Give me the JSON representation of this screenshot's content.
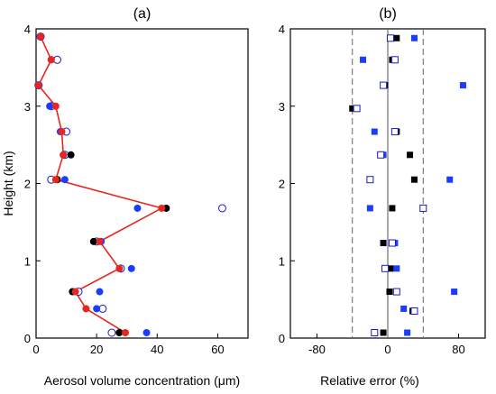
{
  "chart_data": [
    {
      "type": "scatter",
      "panel_label": "(a)",
      "xlabel": "Aerosol volume concentration (μm)",
      "ylabel": "Height (km)",
      "xlim": [
        0,
        70
      ],
      "ylim": [
        0,
        4
      ],
      "xticks": [
        "0",
        "20",
        "40",
        "60"
      ],
      "xtick_values": [
        0,
        20,
        40,
        60
      ],
      "yticks": [
        "0",
        "1",
        "2",
        "3",
        "4"
      ],
      "ytick_values": [
        0,
        1,
        2,
        3,
        4
      ],
      "series": [
        {
          "marker": "open-circle",
          "color": "#1a1acc",
          "points": [
            [
              1.5,
              3.9
            ],
            [
              7,
              3.6
            ],
            [
              0.8,
              3.27
            ],
            [
              5,
              3.0
            ],
            [
              10,
              2.67
            ],
            [
              9.5,
              2.37
            ],
            [
              5,
              2.05
            ],
            [
              61.5,
              1.68
            ],
            [
              20,
              1.25
            ],
            [
              28,
              0.9
            ],
            [
              14,
              0.6
            ],
            [
              22,
              0.38
            ],
            [
              25,
              0.07
            ]
          ]
        },
        {
          "marker": "filled-circle",
          "color": "#1a3cff",
          "points": [
            [
              5,
              3.6
            ],
            [
              1,
              3.27
            ],
            [
              4.5,
              3.0
            ],
            [
              8,
              2.67
            ],
            [
              9,
              2.37
            ],
            [
              9.5,
              2.05
            ],
            [
              33.5,
              1.68
            ],
            [
              21.5,
              1.25
            ],
            [
              31.5,
              0.9
            ],
            [
              21,
              0.6
            ],
            [
              20,
              0.38
            ],
            [
              36.5,
              0.07
            ]
          ]
        },
        {
          "marker": "filled-circle",
          "color": "#000000",
          "points": [
            [
              11.5,
              2.37
            ],
            [
              7,
              2.05
            ],
            [
              43,
              1.68
            ],
            [
              19,
              1.25
            ],
            [
              12,
              0.6
            ],
            [
              27.5,
              0.07
            ]
          ]
        },
        {
          "marker": "filled-circle",
          "color": "#e8261e",
          "line": true,
          "points": [
            [
              1.5,
              3.9
            ],
            [
              5,
              3.6
            ],
            [
              0.8,
              3.27
            ],
            [
              6.5,
              3.0
            ],
            [
              8.5,
              2.67
            ],
            [
              9,
              2.37
            ],
            [
              6.5,
              2.05
            ],
            [
              41.5,
              1.68
            ],
            [
              21,
              1.25
            ],
            [
              27.5,
              0.9
            ],
            [
              13,
              0.6
            ],
            [
              16.5,
              0.38
            ],
            [
              29.5,
              0.07
            ]
          ]
        }
      ]
    },
    {
      "type": "scatter",
      "panel_label": "(b)",
      "xlabel": "Relative error (%)",
      "xlim": [
        -110,
        110
      ],
      "ylim": [
        0,
        4
      ],
      "xticks": [
        "-80",
        "0",
        "80"
      ],
      "xtick_values": [
        -80,
        0,
        80
      ],
      "yticks": [
        "0",
        "1",
        "2",
        "3",
        "4"
      ],
      "ytick_values": [
        0,
        1,
        2,
        3,
        4
      ],
      "reference_lines": [
        -40,
        0,
        40
      ],
      "series": [
        {
          "marker": "filled-square",
          "color": "#000000",
          "points": [
            [
              10,
              3.88
            ],
            [
              5,
              3.6
            ],
            [
              -3,
              3.27
            ],
            [
              -40,
              2.97
            ],
            [
              10,
              2.67
            ],
            [
              25,
              2.37
            ],
            [
              30,
              2.05
            ],
            [
              5,
              1.68
            ],
            [
              -5,
              1.23
            ],
            [
              3,
              0.9
            ],
            [
              2,
              0.6
            ],
            [
              28,
              0.35
            ],
            [
              -5,
              0.07
            ]
          ]
        },
        {
          "marker": "filled-square",
          "color": "#1a3cff",
          "points": [
            [
              30,
              3.88
            ],
            [
              -28,
              3.6
            ],
            [
              85,
              3.27
            ],
            [
              -15,
              2.67
            ],
            [
              -5,
              2.37
            ],
            [
              70,
              2.05
            ],
            [
              -20,
              1.68
            ],
            [
              8,
              1.23
            ],
            [
              10,
              0.9
            ],
            [
              75,
              0.6
            ],
            [
              18,
              0.38
            ],
            [
              22,
              0.07
            ]
          ]
        },
        {
          "marker": "open-square",
          "color": "#1a1acc",
          "points": [
            [
              3,
              3.88
            ],
            [
              8,
              3.6
            ],
            [
              -5,
              3.27
            ],
            [
              -35,
              2.97
            ],
            [
              8,
              2.67
            ],
            [
              -8,
              2.37
            ],
            [
              -20,
              2.05
            ],
            [
              40,
              1.68
            ],
            [
              5,
              1.23
            ],
            [
              -3,
              0.9
            ],
            [
              10,
              0.6
            ],
            [
              30,
              0.35
            ],
            [
              -15,
              0.07
            ]
          ]
        }
      ]
    }
  ]
}
